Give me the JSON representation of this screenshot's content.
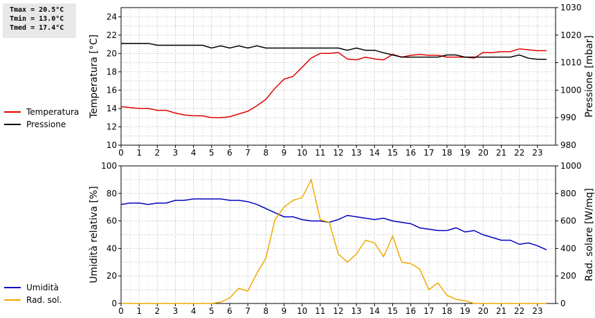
{
  "stats": {
    "tmax": "Tmax = 20.5°C",
    "tmin": "Tmin = 13.0°C",
    "tmed": "Tmed = 17.4°C"
  },
  "chart_data": [
    {
      "type": "line",
      "x_ticks": [
        "0",
        "1",
        "2",
        "3",
        "4",
        "5",
        "6",
        "7",
        "8",
        "9",
        "10",
        "11",
        "12",
        "13",
        "14",
        "15",
        "16",
        "17",
        "18",
        "19",
        "20",
        "21",
        "22",
        "23"
      ],
      "xlim": [
        0,
        24
      ],
      "ylabel": "Temperatura [°C]",
      "ylabel_right": "Pressione [mbar]",
      "ylim": [
        10,
        25
      ],
      "y_ticks": [
        10,
        12,
        14,
        16,
        18,
        20,
        22,
        24
      ],
      "ylim_right": [
        980,
        1030
      ],
      "y_ticks_right": [
        980,
        990,
        1000,
        1010,
        1020,
        1030
      ],
      "grid": true,
      "legend_placement": "left",
      "series": [
        {
          "name": "Temperatura",
          "color": "#e00000",
          "axis": "left",
          "x": [
            0,
            0.5,
            1,
            1.5,
            2,
            2.5,
            3,
            3.5,
            4,
            4.5,
            5,
            5.5,
            6,
            6.5,
            7,
            7.5,
            8,
            8.5,
            9,
            9.5,
            10,
            10.5,
            11,
            11.5,
            12,
            12.5,
            13,
            13.5,
            14,
            14.5,
            15,
            15.5,
            16,
            16.5,
            17,
            17.5,
            18,
            18.5,
            19,
            19.5,
            20,
            20.5,
            21,
            21.5,
            22,
            22.5,
            23,
            23.5
          ],
          "y": [
            14.2,
            14.1,
            14.0,
            14.0,
            13.8,
            13.8,
            13.5,
            13.3,
            13.2,
            13.2,
            13.0,
            13.0,
            13.1,
            13.4,
            13.7,
            14.3,
            15.0,
            16.2,
            17.2,
            17.5,
            18.5,
            19.5,
            20.0,
            20.0,
            20.1,
            19.4,
            19.3,
            19.6,
            19.4,
            19.3,
            19.9,
            19.6,
            19.8,
            19.9,
            19.8,
            19.8,
            19.6,
            19.6,
            19.6,
            19.5,
            20.1,
            20.1,
            20.2,
            20.2,
            20.5,
            20.4,
            20.3,
            20.3
          ]
        },
        {
          "name": "Pressione",
          "color": "#000000",
          "axis": "right",
          "x": [
            0,
            0.5,
            1,
            1.5,
            2,
            2.5,
            3,
            3.5,
            4,
            4.5,
            5,
            5.5,
            6,
            6.5,
            7,
            7.5,
            8,
            8.5,
            9,
            9.5,
            10,
            10.5,
            11,
            11.5,
            12,
            12.5,
            13,
            13.5,
            14,
            14.5,
            15,
            15.5,
            16,
            16.5,
            17,
            17.5,
            18,
            18.5,
            19,
            19.5,
            20,
            20.5,
            21,
            21.5,
            22,
            22.5,
            23,
            23.5
          ],
          "y": [
            1017,
            1017,
            1017,
            1017,
            1016.3,
            1016.3,
            1016.3,
            1016.3,
            1016.3,
            1016.3,
            1015.3,
            1016.1,
            1015.3,
            1016.1,
            1015.3,
            1016.1,
            1015.3,
            1015.3,
            1015.3,
            1015.3,
            1015.3,
            1015.3,
            1015.3,
            1015.3,
            1015.3,
            1014.5,
            1015.3,
            1014.5,
            1014.5,
            1013.6,
            1012.8,
            1012,
            1012,
            1012,
            1012,
            1012,
            1012.8,
            1012.8,
            1012,
            1012,
            1012,
            1012,
            1012,
            1012,
            1012.8,
            1011.6,
            1011.2,
            1011.2
          ]
        }
      ]
    },
    {
      "type": "line",
      "x_ticks": [
        "0",
        "1",
        "2",
        "3",
        "4",
        "5",
        "6",
        "7",
        "8",
        "9",
        "10",
        "11",
        "12",
        "13",
        "14",
        "15",
        "16",
        "17",
        "18",
        "19",
        "20",
        "21",
        "22",
        "23"
      ],
      "xlim": [
        0,
        24
      ],
      "ylabel": "Umidità relativa [%]",
      "ylabel_right": "Rad. solare [W/mq]",
      "ylim": [
        0,
        100
      ],
      "y_ticks": [
        0,
        20,
        40,
        60,
        80,
        100
      ],
      "ylim_right": [
        0,
        1000
      ],
      "y_ticks_right": [
        0,
        200,
        400,
        600,
        800,
        1000
      ],
      "grid": true,
      "legend_placement": "left",
      "series": [
        {
          "name": "Umidità",
          "color": "#0000c0",
          "axis": "left",
          "x": [
            0,
            0.5,
            1,
            1.5,
            2,
            2.5,
            3,
            3.5,
            4,
            4.5,
            5,
            5.5,
            6,
            6.5,
            7,
            7.5,
            8,
            8.5,
            9,
            9.5,
            10,
            10.5,
            11,
            11.5,
            12,
            12.5,
            13,
            13.5,
            14,
            14.5,
            15,
            15.5,
            16,
            16.5,
            17,
            17.5,
            18,
            18.5,
            19,
            19.5,
            20,
            20.5,
            21,
            21.5,
            22,
            22.5,
            23,
            23.5
          ],
          "y": [
            72,
            73,
            73,
            72,
            73,
            73,
            75,
            75,
            76,
            76,
            76,
            76,
            75,
            75,
            74,
            72,
            69,
            66,
            63,
            63,
            61,
            60,
            60,
            59,
            61,
            64,
            63,
            62,
            61,
            62,
            60,
            59,
            58,
            55,
            54,
            53,
            53,
            55,
            52,
            53,
            50,
            48,
            46,
            46,
            43,
            44,
            42,
            39
          ]
        },
        {
          "name": "Rad. sol.",
          "color": "#f0a800",
          "axis": "right",
          "x": [
            0,
            0.5,
            1,
            1.5,
            2,
            2.5,
            3,
            3.5,
            4,
            4.5,
            5,
            5.5,
            6,
            6.5,
            7,
            7.5,
            8,
            8.5,
            9,
            9.5,
            10,
            10.5,
            11,
            11.5,
            12,
            12.5,
            13,
            13.5,
            14,
            14.5,
            15,
            15.5,
            16,
            16.5,
            17,
            17.5,
            18,
            18.5,
            19,
            19.5,
            20,
            20.5,
            21,
            21.5,
            22,
            22.5,
            23,
            23.5
          ],
          "y": [
            0,
            0,
            0,
            0,
            0,
            0,
            0,
            0,
            0,
            0,
            0,
            10,
            40,
            110,
            90,
            220,
            330,
            610,
            700,
            750,
            770,
            900,
            610,
            590,
            360,
            300,
            360,
            460,
            440,
            340,
            490,
            300,
            290,
            250,
            100,
            150,
            60,
            30,
            20,
            0,
            0,
            0,
            0,
            0,
            0,
            0,
            0,
            0
          ]
        }
      ]
    }
  ]
}
